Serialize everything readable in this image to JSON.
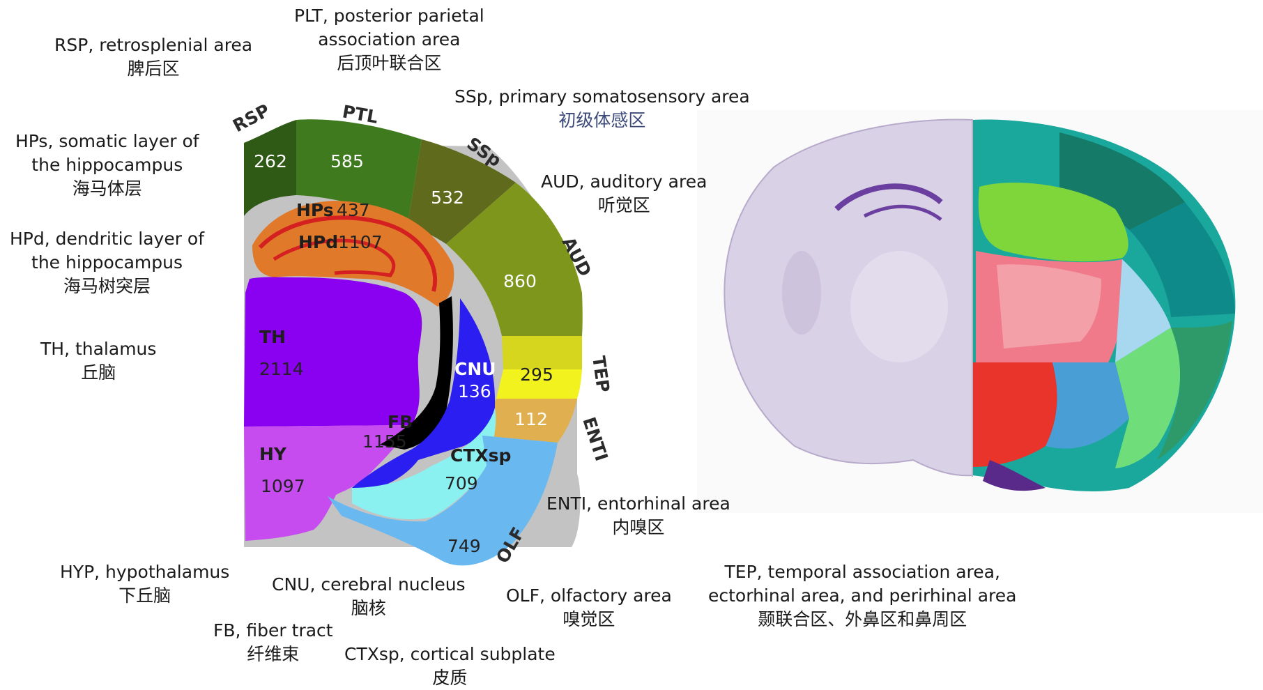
{
  "labels": {
    "rsp": {
      "en": "RSP, retrosplenial area",
      "zh": "脾后区"
    },
    "plt": {
      "en1": "PLT, posterior parietal",
      "en2": "association area",
      "zh": "后顶叶联合区"
    },
    "ssp": {
      "en": "SSp, primary somatosensory area",
      "zh": "初级体感区"
    },
    "hps": {
      "en1": "HPs, somatic layer of",
      "en2": "the hippocampus",
      "zh": "海马体层"
    },
    "aud": {
      "en": "AUD, auditory area",
      "zh": "听觉区"
    },
    "hpd": {
      "en1": "HPd, dendritic layer of",
      "en2": "the hippocampus",
      "zh": "海马树突层"
    },
    "th": {
      "en": "TH, thalamus",
      "zh": "丘脑"
    },
    "enti": {
      "en": "ENTI, entorhinal area",
      "zh": "内嗅区"
    },
    "hyp": {
      "en": "HYP, hypothalamus",
      "zh": "下丘脑"
    },
    "cnu": {
      "en": "CNU, cerebral nucleus",
      "zh": "脑核"
    },
    "olf": {
      "en": "OLF, olfactory area",
      "zh": "嗅觉区"
    },
    "tep": {
      "en1": "TEP, temporal association area,",
      "en2": "ectorhinal area, and perirhinal area",
      "zh": "颞联合区、外鼻区和鼻周区"
    },
    "fb": {
      "en": "FB, ﬁber tract",
      "zh": "纤维束"
    },
    "ctxsp": {
      "en": "CTXsp, cortical subplate",
      "zh": "皮质"
    }
  },
  "diagram": {
    "rim_labels": {
      "rsp": "RSP",
      "ptl": "PTL",
      "ssp": "SSp",
      "aud": "AUD",
      "tep": "TEP",
      "enti": "ENTI",
      "olf": "OLF"
    },
    "regions": {
      "rsp": {
        "abbr": "",
        "value": "262"
      },
      "ptl": {
        "abbr": "",
        "value": "585"
      },
      "ssp": {
        "abbr": "",
        "value": "532"
      },
      "aud": {
        "abbr": "",
        "value": "860"
      },
      "tep": {
        "abbr": "",
        "value": "295"
      },
      "enti": {
        "abbr": "",
        "value": "112"
      },
      "hps": {
        "abbr": "HPs",
        "value": "437"
      },
      "hpd": {
        "abbr": "HPd",
        "value": "1107"
      },
      "th": {
        "abbr": "TH",
        "value": "2114"
      },
      "hy": {
        "abbr": "HY",
        "value": "1097"
      },
      "cnu": {
        "abbr": "CNU",
        "value": "136"
      },
      "fb": {
        "abbr": "FB",
        "value": "1155"
      },
      "ctxsp": {
        "abbr": "CTXsp",
        "value": "709"
      },
      "olf": {
        "abbr": "",
        "value": "749"
      }
    },
    "colors": {
      "rsp": "#2f5a16",
      "ptl": "#3f7a1e",
      "ssp": "#5f6a1c",
      "aud": "#7f961c",
      "tep": "#d6d61e",
      "tep_yellow": "#f2f21e",
      "enti": "#e0b050",
      "hp": "#e07a2a",
      "hp_lines": "#d42020",
      "th": "#8a00f0",
      "hy": "#c64cf0",
      "cnu": "#2a1ef0",
      "fb": "#000000",
      "ctxsp": "#8af0f0",
      "olf": "#6ab8f0",
      "gray": "#c3c3c3"
    }
  }
}
